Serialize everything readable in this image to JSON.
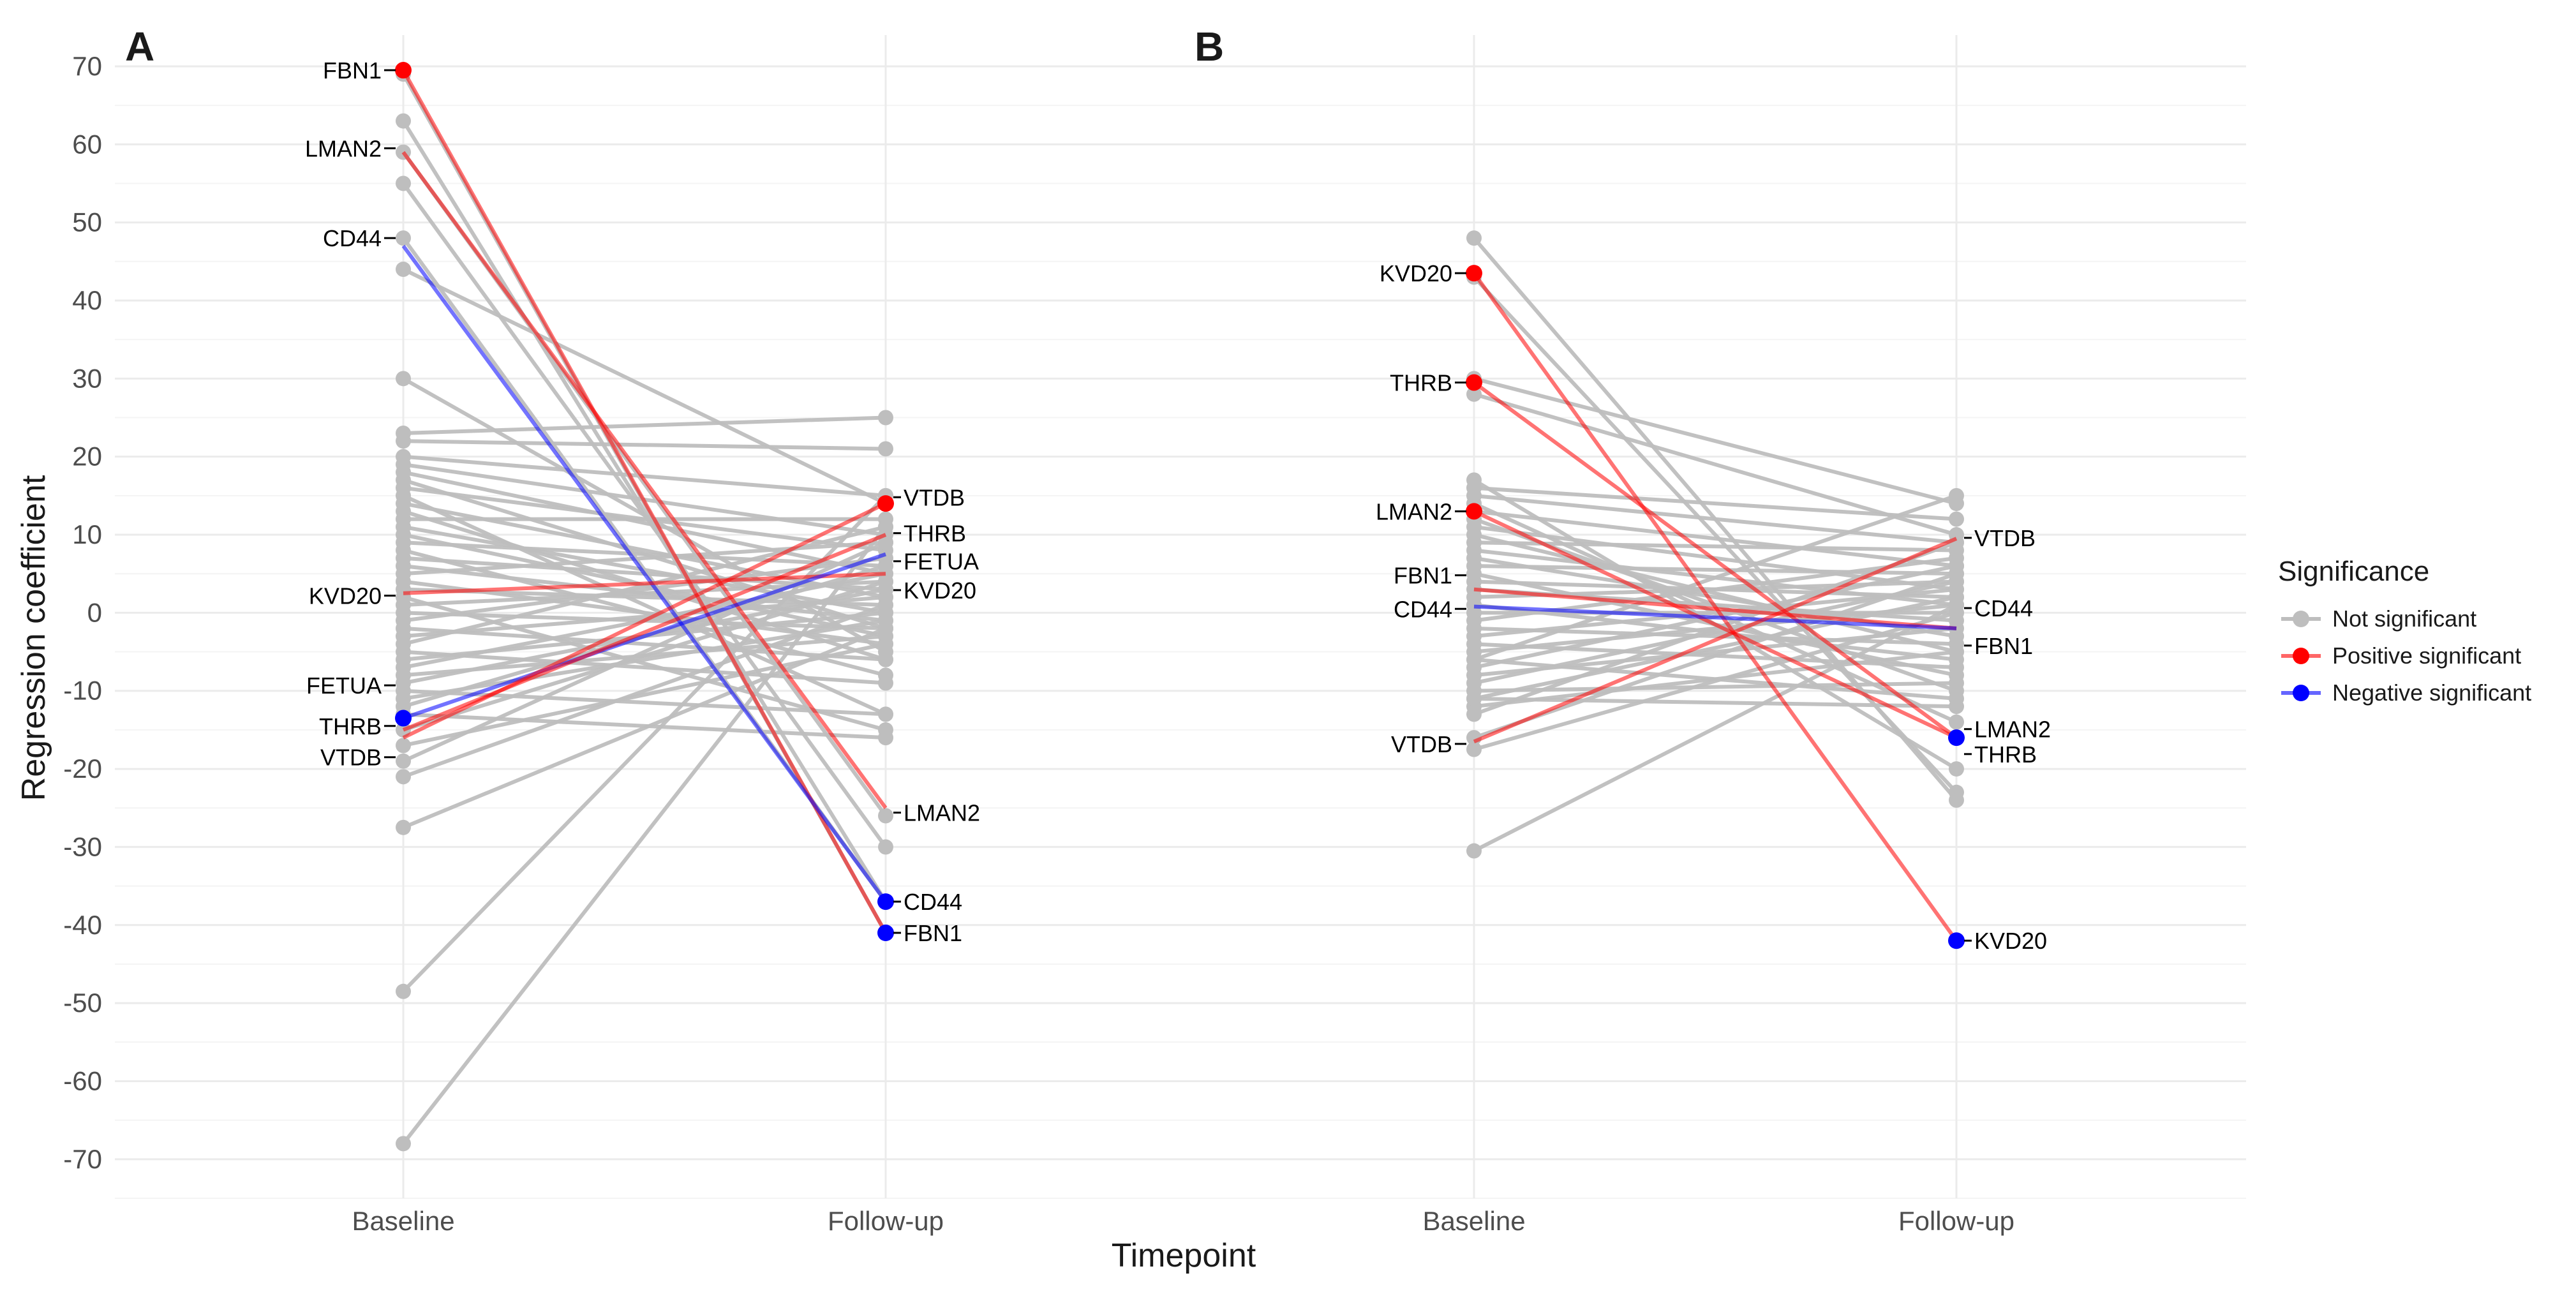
{
  "chart_data": [
    {
      "panel": "A",
      "type": "line",
      "xlabel": "Timepoint",
      "ylabel": "Regression coefficient",
      "categories": [
        "Baseline",
        "Follow-up"
      ],
      "ylim": [
        -75,
        74
      ],
      "yticks": [
        -70,
        -60,
        -50,
        -40,
        -30,
        -20,
        -10,
        0,
        10,
        20,
        30,
        40,
        50,
        60,
        70
      ],
      "series_background": [
        [
          69,
          -41
        ],
        [
          63,
          -37
        ],
        [
          59,
          -26
        ],
        [
          55,
          -30
        ],
        [
          48,
          -37
        ],
        [
          44,
          14
        ],
        [
          30,
          -5
        ],
        [
          23,
          25
        ],
        [
          22,
          21
        ],
        [
          20,
          15
        ],
        [
          19,
          10
        ],
        [
          18,
          5
        ],
        [
          17,
          -2
        ],
        [
          16,
          8
        ],
        [
          15,
          -13
        ],
        [
          14,
          2
        ],
        [
          13,
          -6
        ],
        [
          12,
          12
        ],
        [
          11,
          0
        ],
        [
          10,
          -3
        ],
        [
          9,
          6
        ],
        [
          8,
          -8
        ],
        [
          7,
          3
        ],
        [
          6,
          -1
        ],
        [
          5,
          9
        ],
        [
          4,
          -4
        ],
        [
          3,
          1
        ],
        [
          2,
          -15
        ],
        [
          1,
          4
        ],
        [
          0,
          -2
        ],
        [
          -1,
          7
        ],
        [
          -2,
          -6
        ],
        [
          -3,
          2
        ],
        [
          -4,
          11
        ],
        [
          -5,
          -9
        ],
        [
          -6,
          0
        ],
        [
          -7,
          5
        ],
        [
          -8,
          -3
        ],
        [
          -9,
          3
        ],
        [
          -10,
          -13
        ],
        [
          -11,
          -1
        ],
        [
          -12,
          6
        ],
        [
          -13,
          -16
        ],
        [
          -15,
          4
        ],
        [
          -17,
          -4
        ],
        [
          -19,
          9
        ],
        [
          -21,
          1
        ],
        [
          -27.5,
          -2
        ],
        [
          -48.5,
          15
        ],
        [
          -68,
          11
        ]
      ],
      "series_highlight": [
        {
          "gene": "FBN1",
          "values": [
            69.5,
            -41
          ],
          "significance": "Positive significant"
        },
        {
          "gene": "LMAN2",
          "values": [
            59,
            -25
          ],
          "significance": "Positive significant"
        },
        {
          "gene": "CD44",
          "values": [
            47,
            -37
          ],
          "significance": "Negative significant"
        },
        {
          "gene": "KVD20",
          "values": [
            2.5,
            5
          ],
          "significance": "Positive significant"
        },
        {
          "gene": "FETUA",
          "values": [
            -13.5,
            7.5
          ],
          "significance": "Negative significant"
        },
        {
          "gene": "THRB",
          "values": [
            -15,
            10
          ],
          "significance": "Positive significant"
        },
        {
          "gene": "VTDB",
          "values": [
            -16,
            14
          ],
          "significance": "Positive significant"
        }
      ],
      "labels_baseline": [
        {
          "text": "FBN1",
          "value": 69.5
        },
        {
          "text": "LMAN2",
          "value": 59.5
        },
        {
          "text": "CD44",
          "value": 48
        },
        {
          "text": "KVD20",
          "value": 2.2
        },
        {
          "text": "FETUA",
          "value": -9.3
        },
        {
          "text": "THRB",
          "value": -14.5
        },
        {
          "text": "VTDB",
          "value": -18.5
        }
      ],
      "labels_followup": [
        {
          "text": "VTDB",
          "value": 14.8
        },
        {
          "text": "THRB",
          "value": 10.2
        },
        {
          "text": "FETUA",
          "value": 6.6
        },
        {
          "text": "KVD20",
          "value": 2.9
        },
        {
          "text": "LMAN2",
          "value": -25.6
        },
        {
          "text": "CD44",
          "value": -37
        },
        {
          "text": "FBN1",
          "value": -41
        }
      ]
    },
    {
      "panel": "B",
      "type": "line",
      "xlabel": "Timepoint",
      "ylabel": "Regression coefficient",
      "categories": [
        "Baseline",
        "Follow-up"
      ],
      "ylim": [
        -75,
        74
      ],
      "series_background": [
        [
          48,
          -24
        ],
        [
          43,
          -23
        ],
        [
          30,
          14
        ],
        [
          28,
          10
        ],
        [
          17,
          -20
        ],
        [
          16,
          12
        ],
        [
          15,
          9
        ],
        [
          14,
          -14
        ],
        [
          13,
          6
        ],
        [
          12,
          -10
        ],
        [
          11,
          3
        ],
        [
          10,
          -5
        ],
        [
          9,
          8
        ],
        [
          8,
          1
        ],
        [
          7,
          -3
        ],
        [
          6,
          5
        ],
        [
          5,
          -8
        ],
        [
          4,
          2
        ],
        [
          3,
          -1
        ],
        [
          2,
          4
        ],
        [
          1,
          -6
        ],
        [
          0,
          0
        ],
        [
          -1,
          7
        ],
        [
          -2,
          -4
        ],
        [
          -3,
          3
        ],
        [
          -4,
          -7
        ],
        [
          -5,
          1
        ],
        [
          -6,
          -11
        ],
        [
          -7,
          6
        ],
        [
          -8,
          -2
        ],
        [
          -9,
          4
        ],
        [
          -10,
          -9
        ],
        [
          -11,
          2
        ],
        [
          -12,
          -5
        ],
        [
          -13,
          9
        ],
        [
          -16,
          5
        ],
        [
          -17.5,
          0
        ],
        [
          -30.5,
          1
        ],
        [
          -11,
          -12
        ],
        [
          -6,
          15
        ]
      ],
      "series_highlight": [
        {
          "gene": "KVD20",
          "values": [
            43.5,
            -42
          ],
          "significance": "Positive significant"
        },
        {
          "gene": "THRB",
          "values": [
            29.5,
            -16
          ],
          "significance": "Positive significant"
        },
        {
          "gene": "LMAN2",
          "values": [
            13,
            -16
          ],
          "significance": "Positive significant"
        },
        {
          "gene": "FBN1",
          "values": [
            3,
            -2
          ],
          "significance": "Positive significant"
        },
        {
          "gene": "CD44",
          "values": [
            0.8,
            -2
          ],
          "significance": "Negative significant"
        },
        {
          "gene": "VTDB",
          "values": [
            -16.5,
            9.5
          ],
          "significance": "Positive significant"
        }
      ],
      "labels_baseline": [
        {
          "text": "KVD20",
          "value": 43.5
        },
        {
          "text": "THRB",
          "value": 29.5
        },
        {
          "text": "LMAN2",
          "value": 13
        },
        {
          "text": "FBN1",
          "value": 4.8
        },
        {
          "text": "CD44",
          "value": 0.5
        },
        {
          "text": "VTDB",
          "value": -16.8
        }
      ],
      "labels_followup": [
        {
          "text": "VTDB",
          "value": 9.6
        },
        {
          "text": "CD44",
          "value": 0.6
        },
        {
          "text": "FBN1",
          "value": -4.2
        },
        {
          "text": "LMAN2",
          "value": -14.9
        },
        {
          "text": "THRB",
          "value": -18.1
        },
        {
          "text": "KVD20",
          "value": -42
        }
      ]
    }
  ],
  "legend": {
    "title": "Significance",
    "items": [
      {
        "label": "Not significant",
        "color": "#bebebe"
      },
      {
        "label": "Positive significant",
        "color": "#ff0000"
      },
      {
        "label": "Negative significant",
        "color": "#0000ff"
      }
    ]
  },
  "colors": {
    "not_significant": "#bebebe",
    "positive": "#ff0000",
    "negative": "#0000ff"
  }
}
